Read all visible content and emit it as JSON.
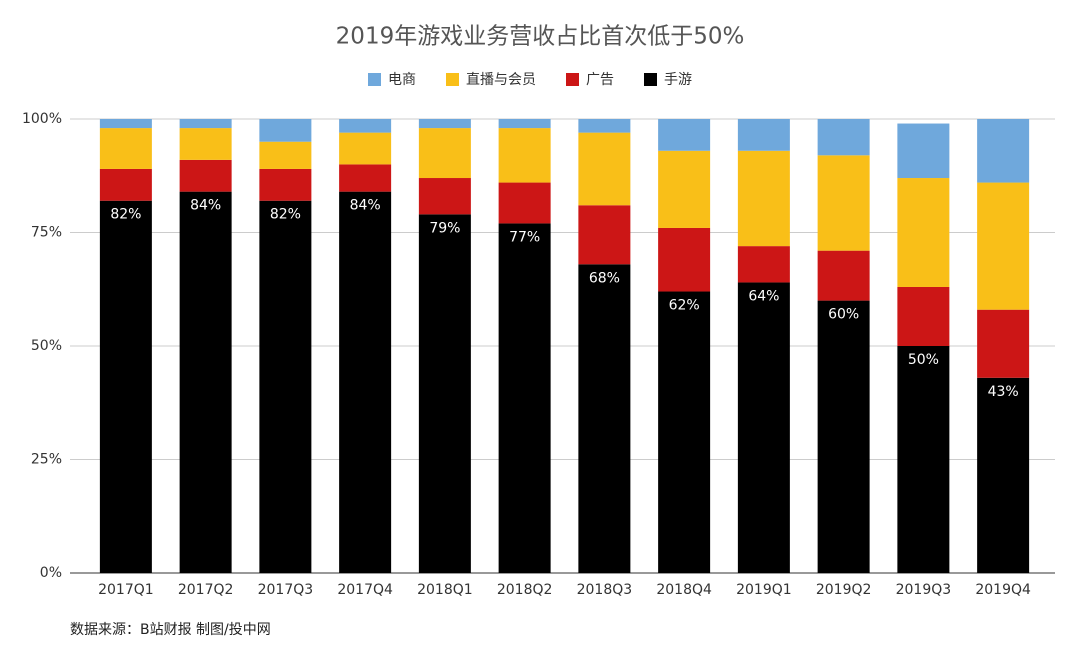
{
  "chart_data": {
    "type": "stacked_bar",
    "title": "2019年游戏业务营收占比首次低于50%",
    "categories": [
      "2017Q1",
      "2017Q2",
      "2017Q3",
      "2017Q4",
      "2018Q1",
      "2018Q2",
      "2018Q3",
      "2018Q4",
      "2019Q1",
      "2019Q2",
      "2019Q3",
      "2019Q4"
    ],
    "series": [
      {
        "name": "电商",
        "color": "#6fa8dc",
        "values": [
          2,
          2,
          5,
          3,
          2,
          2,
          3,
          7,
          7,
          8,
          12,
          14
        ]
      },
      {
        "name": "直播与会员",
        "color": "#f9bf18",
        "values": [
          9,
          7,
          6,
          7,
          11,
          12,
          16,
          17,
          21,
          21,
          24,
          28
        ]
      },
      {
        "name": "广告",
        "color": "#cc1616",
        "values": [
          7,
          7,
          7,
          6,
          8,
          9,
          13,
          14,
          8,
          11,
          13,
          15
        ]
      },
      {
        "name": "手游",
        "color": "#000000",
        "values": [
          82,
          84,
          82,
          84,
          79,
          77,
          68,
          62,
          64,
          60,
          50,
          43
        ],
        "value_labels": [
          "82%",
          "84%",
          "82%",
          "84%",
          "79%",
          "77%",
          "68%",
          "62%",
          "64%",
          "60%",
          "50%",
          "43%"
        ]
      }
    ],
    "ylim": [
      0,
      100
    ],
    "yticks": [
      {
        "value": 0,
        "label": "0%"
      },
      {
        "value": 25,
        "label": "25%"
      },
      {
        "value": 50,
        "label": "50%"
      },
      {
        "value": 75,
        "label": "75%"
      },
      {
        "value": 100,
        "label": "100%"
      }
    ],
    "grid": true,
    "legend": "top",
    "source": "数据来源：B站财报  制图/投中网"
  }
}
